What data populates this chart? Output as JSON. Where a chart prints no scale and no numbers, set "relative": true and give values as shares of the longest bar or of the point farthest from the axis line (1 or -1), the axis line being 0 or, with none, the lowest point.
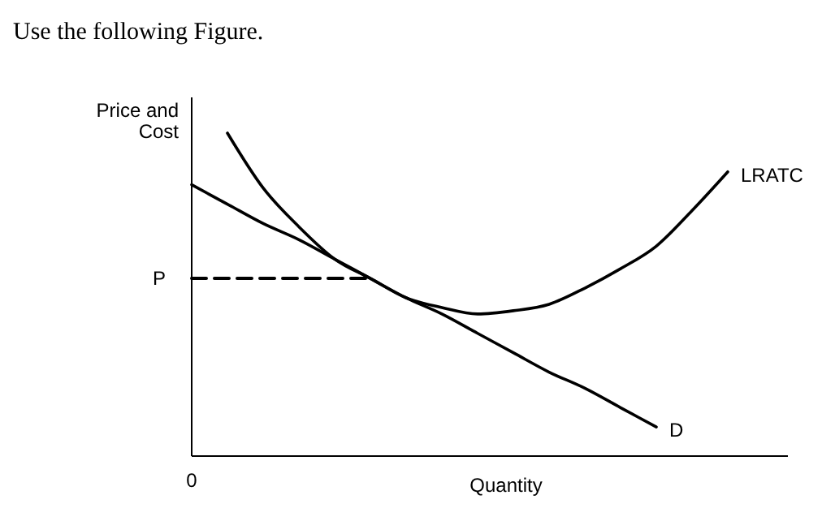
{
  "chart_data": {
    "type": "line",
    "title": "Use the following Figure.",
    "xlabel": "Quantity",
    "ylabel": "Price and\nCost",
    "relative": true,
    "line_style": "solid",
    "marker": "none",
    "categories": [
      null,
      null,
      null,
      null,
      null,
      null,
      null,
      null,
      null,
      null,
      null,
      null,
      null,
      null,
      null,
      null
    ],
    "series": [
      {
        "name": "LRATC",
        "color": "#000000",
        "values": [
          null,
          1.0,
          0.83,
          0.71,
          0.61,
          0.55,
          0.49,
          0.46,
          0.44,
          0.45,
          0.47,
          0.52,
          0.58,
          0.65,
          0.76,
          0.88
        ]
      },
      {
        "name": "D",
        "color": "#000000",
        "values": [
          0.84,
          0.78,
          0.72,
          0.67,
          0.61,
          0.55,
          0.49,
          0.44,
          0.38,
          0.32,
          0.26,
          0.21,
          0.15,
          0.09,
          null,
          null
        ]
      },
      {
        "color": "#000000",
        "line_style": "dashed",
        "values": [
          0.55,
          0.55,
          0.55,
          0.55,
          0.55,
          0.55,
          null,
          null,
          null,
          null,
          null,
          null,
          null,
          null,
          null,
          null
        ]
      }
    ],
    "annotations": [
      "P",
      "0"
    ]
  }
}
